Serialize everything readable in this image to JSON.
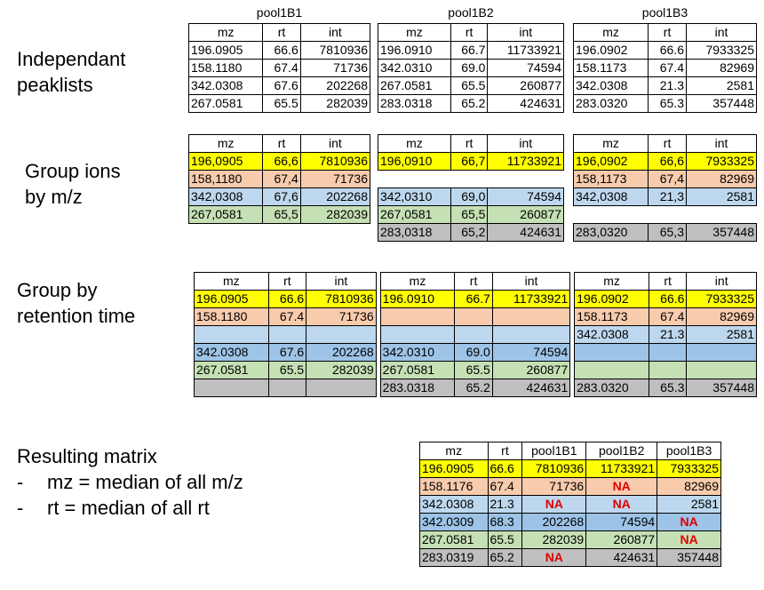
{
  "colors": {
    "yellow": "#ffff00",
    "salmon": "#f8cbad",
    "lightblue": "#bdd7ee",
    "midblue": "#9dc3e6",
    "green": "#c5e0b4",
    "gray": "#bfbfbf",
    "na": "#e00000"
  },
  "labels": {
    "independent": [
      "Independant",
      "peaklists"
    ],
    "group_mz": [
      "Group ions",
      "by m/z"
    ],
    "group_rt": [
      "Group by",
      "retention time"
    ],
    "result_title": "Resulting matrix",
    "result_bullets": [
      "mz = median of all m/z",
      "rt = median of all rt"
    ],
    "bullet_dash": "-"
  },
  "headers": {
    "mz": "mz",
    "rt": "rt",
    "int": "int"
  },
  "sections": {
    "independent": [
      {
        "title": "pool1B1",
        "rows": [
          [
            "196.0905",
            "66.6",
            "7810936"
          ],
          [
            "158.1180",
            "67.4",
            "71736"
          ],
          [
            "342.0308",
            "67.6",
            "202268"
          ],
          [
            "267.0581",
            "65.5",
            "282039"
          ]
        ]
      },
      {
        "title": "pool1B2",
        "rows": [
          [
            "196.0910",
            "66.7",
            "11733921"
          ],
          [
            "342.0310",
            "69.0",
            "74594"
          ],
          [
            "267.0581",
            "65.5",
            "260877"
          ],
          [
            "283.0318",
            "65.2",
            "424631"
          ]
        ]
      },
      {
        "title": "pool1B3",
        "rows": [
          [
            "196.0902",
            "66.6",
            "7933325"
          ],
          [
            "158.1173",
            "67.4",
            "82969"
          ],
          [
            "342.0308",
            "21.3",
            "2581"
          ],
          [
            "283.0320",
            "65.3",
            "357448"
          ]
        ]
      }
    ],
    "group_mz": [
      {
        "rows": [
          {
            "color": "yellow",
            "v": [
              "196,0905",
              "66,6",
              "7810936"
            ]
          },
          {
            "color": "salmon",
            "v": [
              "158,1180",
              "67,4",
              "71736"
            ]
          },
          {
            "color": "lightblue",
            "v": [
              "342,0308",
              "67,6",
              "202268"
            ]
          },
          {
            "color": "green",
            "v": [
              "267,0581",
              "65,5",
              "282039"
            ]
          }
        ]
      },
      {
        "rows": [
          {
            "color": "yellow",
            "v": [
              "196,0910",
              "66,7",
              "11733921"
            ]
          },
          {
            "color": "none",
            "v": [
              "",
              "",
              ""
            ]
          },
          {
            "color": "lightblue",
            "v": [
              "342,0310",
              "69,0",
              "74594"
            ]
          },
          {
            "color": "green",
            "v": [
              "267,0581",
              "65,5",
              "260877"
            ]
          },
          {
            "color": "gray",
            "v": [
              "283,0318",
              "65,2",
              "424631"
            ]
          }
        ]
      },
      {
        "rows": [
          {
            "color": "yellow",
            "v": [
              "196,0902",
              "66,6",
              "7933325"
            ]
          },
          {
            "color": "salmon",
            "v": [
              "158,1173",
              "67,4",
              "82969"
            ]
          },
          {
            "color": "lightblue",
            "v": [
              "342,0308",
              "21,3",
              "2581"
            ]
          },
          {
            "color": "none",
            "v": [
              "",
              "",
              ""
            ]
          },
          {
            "color": "gray",
            "v": [
              "283,0320",
              "65,3",
              "357448"
            ]
          }
        ]
      }
    ],
    "group_rt": [
      {
        "color": "yellow",
        "cells": [
          [
            "196.0905",
            "66.6",
            "7810936"
          ],
          [
            "196.0910",
            "66.7",
            "11733921"
          ],
          [
            "196.0902",
            "66.6",
            "7933325"
          ]
        ]
      },
      {
        "color": "salmon",
        "cells": [
          [
            "158.1180",
            "67.4",
            "71736"
          ],
          [
            "",
            "",
            ""
          ],
          [
            "158.1173",
            "67.4",
            "82969"
          ]
        ]
      },
      {
        "color": "lightblue",
        "cells": [
          [
            "",
            "",
            ""
          ],
          [
            "",
            "",
            ""
          ],
          [
            "342.0308",
            "21.3",
            "2581"
          ]
        ]
      },
      {
        "color": "midblue",
        "cells": [
          [
            "342.0308",
            "67.6",
            "202268"
          ],
          [
            "342.0310",
            "69.0",
            "74594"
          ],
          [
            "",
            "",
            ""
          ]
        ]
      },
      {
        "color": "green",
        "cells": [
          [
            "267.0581",
            "65.5",
            "282039"
          ],
          [
            "267.0581",
            "65.5",
            "260877"
          ],
          [
            "",
            "",
            ""
          ]
        ]
      },
      {
        "color": "gray",
        "cells": [
          [
            "",
            "",
            ""
          ],
          [
            "283.0318",
            "65.2",
            "424631"
          ],
          [
            "283.0320",
            "65.3",
            "357448"
          ]
        ]
      }
    ],
    "result": {
      "headers": [
        "mz",
        "rt",
        "pool1B1",
        "pool1B2",
        "pool1B3"
      ],
      "rows": [
        {
          "color": "yellow",
          "v": [
            "196.0905",
            "66.6",
            "7810936",
            "11733921",
            "7933325"
          ]
        },
        {
          "color": "salmon",
          "v": [
            "158.1176",
            "67.4",
            "71736",
            "NA",
            "82969"
          ]
        },
        {
          "color": "lightblue",
          "v": [
            "342.0308",
            "21.3",
            "NA",
            "NA",
            "2581"
          ]
        },
        {
          "color": "midblue",
          "v": [
            "342.0309",
            "68.3",
            "202268",
            "74594",
            "NA"
          ]
        },
        {
          "color": "green",
          "v": [
            "267.0581",
            "65.5",
            "282039",
            "260877",
            "NA"
          ]
        },
        {
          "color": "gray",
          "v": [
            "283.0319",
            "65.2",
            "NA",
            "424631",
            "357448"
          ]
        }
      ]
    }
  }
}
